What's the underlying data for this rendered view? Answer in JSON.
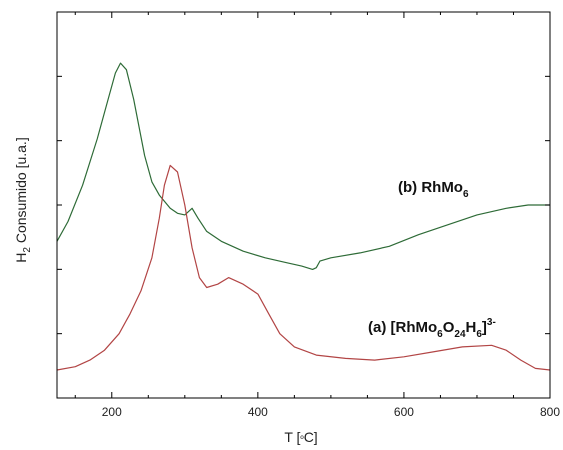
{
  "chart_data": {
    "type": "line",
    "xlabel_parts": {
      "t": "T [",
      "deg": "º",
      "c": "C]"
    },
    "ylabel_parts": {
      "h": "H",
      "sub": "2",
      "rest": " Consumido [u.a.]"
    },
    "xlim": [
      125,
      800
    ],
    "ylim": [
      0,
      100
    ],
    "xticks": [
      {
        "value": 200,
        "label": "200"
      },
      {
        "value": 400,
        "label": "400"
      },
      {
        "value": 600,
        "label": "600"
      },
      {
        "value": 800,
        "label": "800"
      }
    ],
    "yticks": [
      0,
      25,
      50,
      75,
      100
    ],
    "grid": false,
    "legend": "none",
    "series": [
      {
        "color": "#2e6b37",
        "points": [
          [
            125,
            39
          ],
          [
            140,
            45
          ],
          [
            160,
            56
          ],
          [
            180,
            70
          ],
          [
            195,
            82
          ],
          [
            205,
            90
          ],
          [
            212,
            93
          ],
          [
            220,
            91
          ],
          [
            230,
            82
          ],
          [
            245,
            65
          ],
          [
            255,
            57
          ],
          [
            265,
            53
          ],
          [
            280,
            49
          ],
          [
            290,
            47.5
          ],
          [
            300,
            47
          ],
          [
            305,
            48
          ],
          [
            310,
            49
          ],
          [
            318,
            46
          ],
          [
            330,
            42
          ],
          [
            350,
            39
          ],
          [
            380,
            36
          ],
          [
            410,
            34
          ],
          [
            440,
            32.5
          ],
          [
            460,
            31.5
          ],
          [
            475,
            30.5
          ],
          [
            480,
            31
          ],
          [
            485,
            33
          ],
          [
            500,
            34
          ],
          [
            540,
            35.5
          ],
          [
            580,
            37.5
          ],
          [
            620,
            41
          ],
          [
            660,
            44
          ],
          [
            700,
            47
          ],
          [
            740,
            49
          ],
          [
            770,
            50
          ],
          [
            800,
            50
          ]
        ]
      },
      {
        "color": "#b24545",
        "points": [
          [
            125,
            0
          ],
          [
            150,
            1
          ],
          [
            170,
            3
          ],
          [
            190,
            6
          ],
          [
            210,
            11
          ],
          [
            225,
            17
          ],
          [
            240,
            24
          ],
          [
            255,
            34
          ],
          [
            265,
            46
          ],
          [
            272,
            56
          ],
          [
            280,
            62
          ],
          [
            290,
            60
          ],
          [
            300,
            50
          ],
          [
            310,
            37
          ],
          [
            320,
            28
          ],
          [
            330,
            25
          ],
          [
            345,
            26
          ],
          [
            360,
            28
          ],
          [
            380,
            26
          ],
          [
            400,
            23
          ],
          [
            415,
            17
          ],
          [
            430,
            11
          ],
          [
            450,
            7
          ],
          [
            480,
            4.5
          ],
          [
            520,
            3.5
          ],
          [
            560,
            3
          ],
          [
            600,
            4
          ],
          [
            640,
            5.5
          ],
          [
            680,
            7
          ],
          [
            720,
            7.5
          ],
          [
            740,
            6
          ],
          [
            760,
            3
          ],
          [
            780,
            0.5
          ],
          [
            800,
            0
          ]
        ]
      }
    ],
    "annotations": [
      {
        "id": "b",
        "parts": {
          "prefix": "(b) RhMo",
          "sub": "6"
        }
      },
      {
        "id": "a",
        "parts": {
          "prefix": "(a) [RhMo",
          "s1": "6",
          "o": "O",
          "s2": "24",
          "h": "H",
          "s3": "6",
          "close": "]",
          "sup": "3-"
        }
      }
    ]
  }
}
